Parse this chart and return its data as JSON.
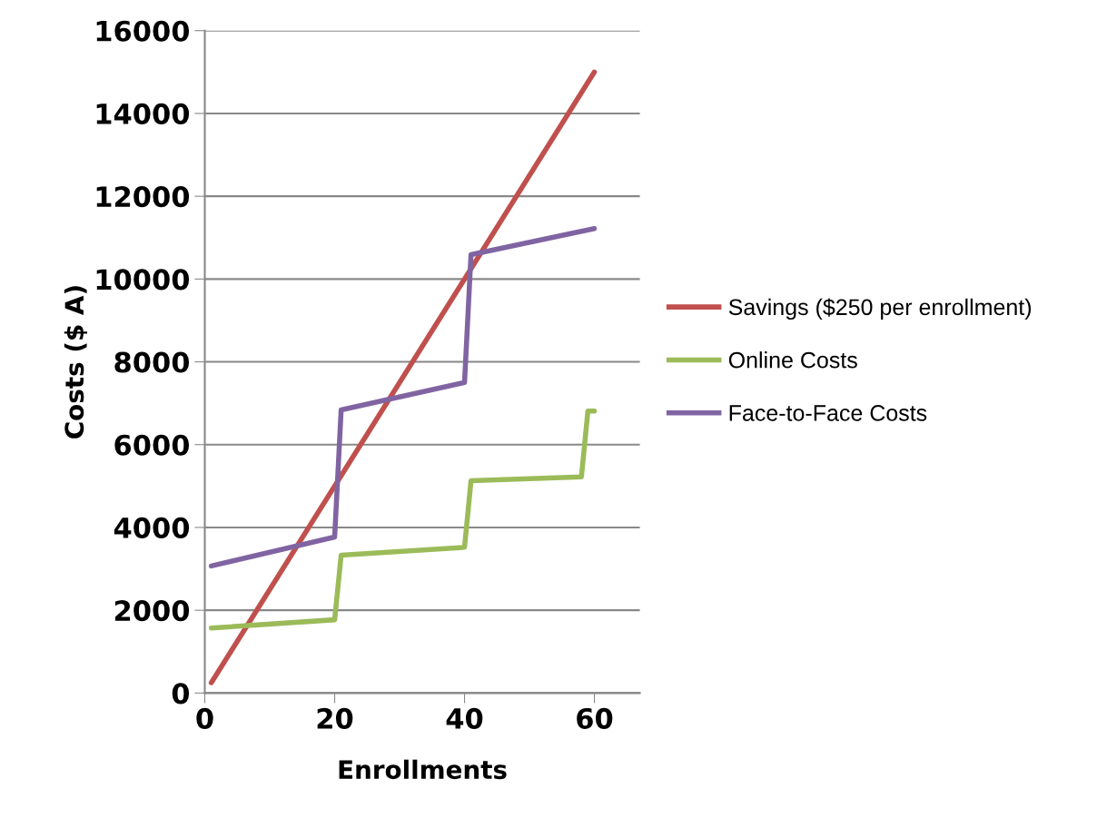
{
  "chart_data": {
    "type": "line",
    "xlabel": "Enrollments",
    "ylabel": "Costs ($ A)",
    "xlim": [
      0,
      67
    ],
    "xticks": [
      0,
      20,
      40,
      60
    ],
    "ylim": [
      0,
      16000
    ],
    "yticks": [
      0,
      2000,
      4000,
      6000,
      8000,
      10000,
      12000,
      14000,
      16000
    ],
    "grid": "y",
    "legend": "right",
    "marker": "none",
    "line_style": "solid",
    "series": [
      {
        "name": "Savings ($250 per enrollment)",
        "color": "#c0504d",
        "x": [
          1,
          60
        ],
        "values": [
          250,
          15000
        ]
      },
      {
        "name": "Online Costs",
        "color": "#9bbb59",
        "x": [
          1,
          20,
          21,
          40,
          41,
          58,
          59,
          60
        ],
        "values": [
          1570,
          1770,
          3330,
          3520,
          5130,
          5220,
          6810,
          6810
        ]
      },
      {
        "name": "Face-to-Face Costs",
        "color": "#8064a2",
        "x": [
          1,
          20,
          21,
          40,
          41,
          60
        ],
        "values": [
          3070,
          3770,
          6840,
          7500,
          10590,
          11220
        ]
      }
    ]
  }
}
